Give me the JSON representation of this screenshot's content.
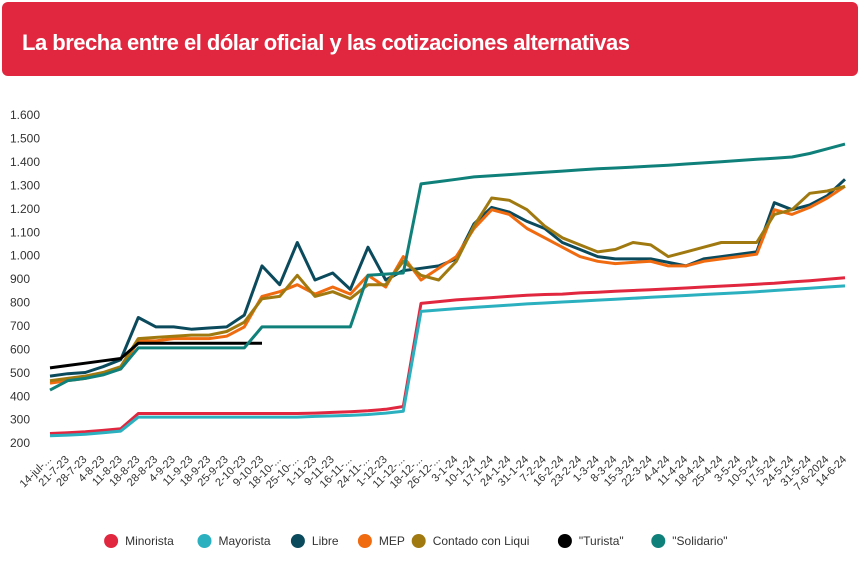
{
  "chart_data": {
    "type": "line",
    "title": "La brecha entre el dólar oficial y las cotizaciones alternativas",
    "categories": [
      "14-jul-...",
      "21-7-23",
      "28-7-23",
      "4-8-23",
      "11-8-23",
      "18-8-23",
      "28-8-23",
      "4-9-23",
      "11-9-23",
      "18-9-23",
      "25-9-23",
      "2-10-23",
      "9-10-23",
      "18-10-...",
      "25-10-...",
      "1-11-23",
      "9-11-23",
      "16-11-...",
      "24-11-...",
      "1-12-23",
      "11-12-...",
      "18-12-...",
      "26-12-...",
      "3-1-24",
      "10-1-24",
      "17-1-24",
      "24-1-24",
      "31-1-24",
      "7-2-24",
      "16-2-24",
      "23-2-24",
      "1-3-24",
      "8-3-24",
      "15-3-24",
      "22-3-24",
      "4-4-24",
      "11-4-24",
      "18-4-24",
      "25-4-24",
      "3-5-24",
      "10-5-24",
      "17-5-24",
      "24-5-24",
      "31-5-24",
      "7-6-2024",
      "14-6-24"
    ],
    "series": [
      {
        "name": "Minorista",
        "color": "#e0273f",
        "values": [
          245,
          248,
          252,
          258,
          265,
          330,
          330,
          330,
          330,
          330,
          330,
          330,
          330,
          330,
          330,
          332,
          335,
          338,
          342,
          348,
          360,
          800,
          808,
          815,
          820,
          825,
          830,
          835,
          838,
          840,
          845,
          848,
          852,
          855,
          858,
          862,
          866,
          870,
          874,
          878,
          882,
          886,
          892,
          897,
          903,
          910
        ]
      },
      {
        "name": "Mayorista",
        "color": "#2bb0c0",
        "values": [
          235,
          238,
          242,
          248,
          255,
          315,
          315,
          315,
          315,
          315,
          315,
          315,
          315,
          315,
          315,
          318,
          320,
          322,
          326,
          332,
          340,
          766,
          772,
          778,
          783,
          788,
          793,
          798,
          802,
          806,
          810,
          814,
          818,
          822,
          826,
          830,
          834,
          838,
          842,
          846,
          850,
          855,
          860,
          865,
          870,
          875
        ]
      },
      {
        "name": "Libre",
        "color": "#0b4a5c",
        "values": [
          490,
          500,
          505,
          530,
          560,
          740,
          700,
          700,
          690,
          695,
          700,
          750,
          960,
          880,
          1060,
          900,
          930,
          860,
          1040,
          900,
          940,
          950,
          960,
          990,
          1140,
          1210,
          1190,
          1150,
          1120,
          1060,
          1030,
          1000,
          990,
          990,
          990,
          975,
          960,
          990,
          1000,
          1010,
          1020,
          1230,
          1200,
          1220,
          1260,
          1330
        ]
      },
      {
        "name": "MEP",
        "color": "#f06a0f",
        "values": [
          460,
          470,
          480,
          500,
          520,
          640,
          640,
          650,
          650,
          650,
          660,
          700,
          830,
          850,
          880,
          840,
          870,
          840,
          920,
          870,
          1000,
          900,
          950,
          1000,
          1120,
          1200,
          1180,
          1120,
          1080,
          1040,
          1000,
          980,
          970,
          975,
          980,
          960,
          960,
          980,
          990,
          1000,
          1010,
          1200,
          1180,
          1210,
          1250,
          1300
        ]
      },
      {
        "name": "Contado con Liqui",
        "color": "#a07a10",
        "values": [
          470,
          480,
          490,
          505,
          530,
          650,
          655,
          660,
          665,
          665,
          680,
          720,
          820,
          830,
          920,
          830,
          850,
          820,
          880,
          880,
          980,
          920,
          900,
          980,
          1130,
          1250,
          1240,
          1200,
          1130,
          1080,
          1050,
          1020,
          1030,
          1060,
          1050,
          1000,
          1020,
          1040,
          1060,
          1060,
          1060,
          1180,
          1200,
          1270,
          1280,
          1300
        ]
      },
      {
        "name": "\"Turista\"",
        "color": "#000000",
        "values": [
          525,
          535,
          545,
          555,
          565,
          630,
          630,
          630,
          630,
          630,
          630,
          630,
          630,
          null,
          null,
          null,
          null,
          null,
          null,
          null,
          null,
          null,
          null,
          null,
          null,
          null,
          null,
          null,
          null,
          null,
          null,
          null,
          null,
          null,
          null,
          null,
          null,
          null,
          null,
          null,
          null,
          null,
          null,
          null,
          null,
          null
        ]
      },
      {
        "name": "\"Solidario\"",
        "color": "#10807a",
        "values": [
          430,
          470,
          480,
          495,
          520,
          610,
          610,
          610,
          610,
          610,
          610,
          610,
          700,
          700,
          700,
          700,
          700,
          700,
          920,
          925,
          930,
          1310,
          1320,
          1330,
          1340,
          1345,
          1350,
          1355,
          1360,
          1365,
          1370,
          1375,
          1378,
          1382,
          1386,
          1390,
          1395,
          1400,
          1405,
          1410,
          1415,
          1420,
          1425,
          1440,
          1460,
          1480
        ]
      }
    ],
    "ylim": [
      200,
      1600
    ],
    "yticks": [
      200,
      300,
      400,
      500,
      600,
      700,
      800,
      900,
      {
        "value": 1000,
        "label": "1.000"
      },
      {
        "value": 1100,
        "label": "1.100"
      },
      {
        "value": 1200,
        "label": "1.200"
      },
      {
        "value": 1300,
        "label": "1.300"
      },
      {
        "value": 1400,
        "label": "1.400"
      },
      {
        "value": 1500,
        "label": "1.500"
      },
      {
        "value": 1600,
        "label": "1.600"
      }
    ],
    "grid": false
  }
}
